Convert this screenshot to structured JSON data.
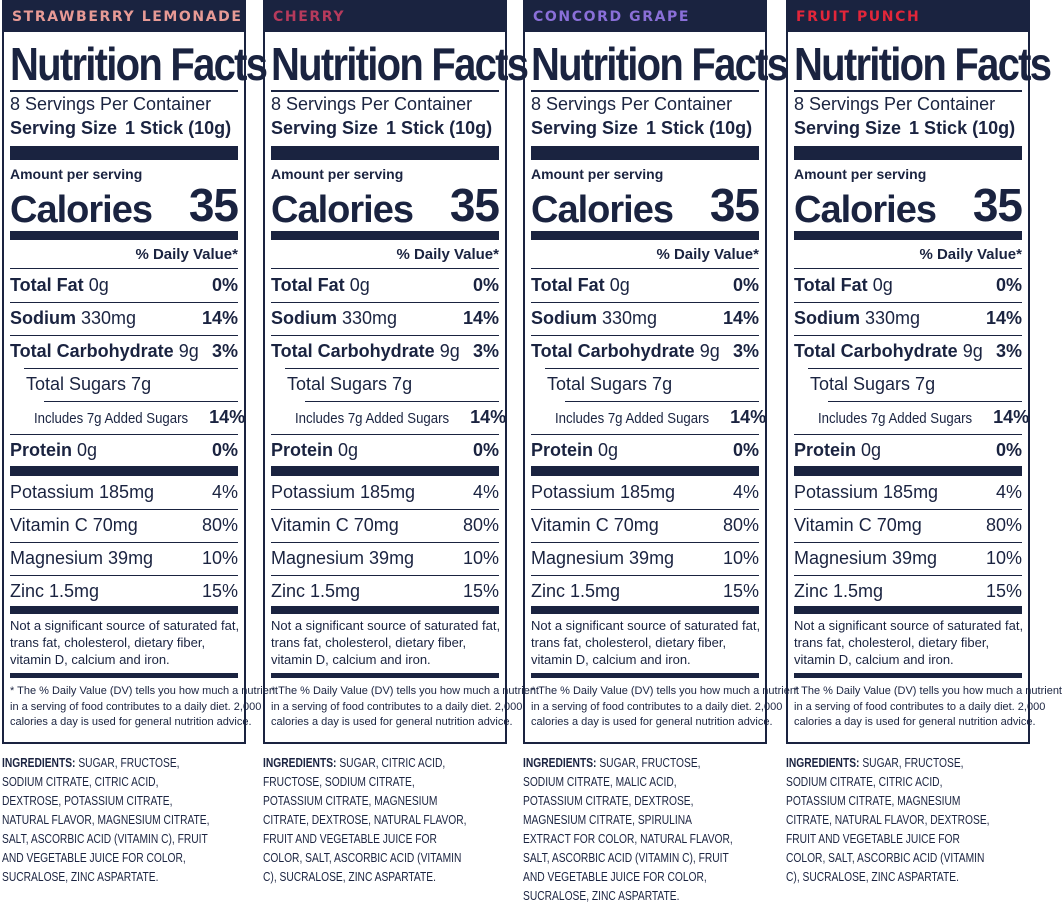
{
  "panels": [
    {
      "flavor": "STRAWBERRY LEMONADE",
      "flavor_color": "#e79a95",
      "ingredients_text": "SUGAR, FRUCTOSE, SODIUM CITRATE, CITRIC ACID, DEXTROSE, POTASSIUM CITRATE, NATURAL FLAVOR, MAGNESIUM CITRATE, SALT, ASCORBIC ACID (VITAMIN C), FRUIT AND VEGETABLE JUICE FOR COLOR, SUCRALOSE, ZINC ASPARTATE."
    },
    {
      "flavor": "CHERRY",
      "flavor_color": "#b63a5c",
      "ingredients_text": "SUGAR, CITRIC ACID, FRUCTOSE, SODIUM CITRATE, POTASSIUM CITRATE, MAGNESIUM CITRATE, DEXTROSE, NATURAL FLAVOR, FRUIT AND VEGETABLE JUICE FOR COLOR, SALT, ASCORBIC ACID (VITAMIN C), SUCRALOSE, ZINC ASPARTATE."
    },
    {
      "flavor": "CONCORD GRAPE",
      "flavor_color": "#8a6fd8",
      "ingredients_text": "SUGAR, FRUCTOSE, SODIUM CITRATE, MALIC ACID, POTASSIUM CITRATE, DEXTROSE, MAGNESIUM CITRATE, SPIRULINA EXTRACT FOR COLOR, NATURAL FLAVOR, SALT, ASCORBIC ACID (VITAMIN C), FRUIT AND VEGETABLE JUICE FOR COLOR, SUCRALOSE, ZINC ASPARTATE."
    },
    {
      "flavor": "FRUIT PUNCH",
      "flavor_color": "#e2263a",
      "ingredients_text": "SUGAR, FRUCTOSE, SODIUM CITRATE, CITRIC ACID, POTASSIUM CITRATE, MAGNESIUM CITRATE, NATURAL FLAVOR, DEXTROSE, FRUIT AND VEGETABLE JUICE FOR COLOR, SALT, ASCORBIC ACID (VITAMIN C), SUCRALOSE, ZINC ASPARTATE."
    }
  ],
  "facts": {
    "title": "Nutrition Facts",
    "servings": "8 Servings Per Container",
    "serving_size_label": "Serving Size",
    "serving_size_value": "1 Stick (10g)",
    "amount_per_serving": "Amount per serving",
    "calories_label": "Calories",
    "calories_value": "35",
    "daily_value_header": "% Daily Value*",
    "total_fat_label": "Total Fat",
    "total_fat_amount": "0g",
    "total_fat_dv": "0%",
    "sodium_label": "Sodium",
    "sodium_amount": "330mg",
    "sodium_dv": "14%",
    "carb_label": "Total Carbohydrate",
    "carb_amount": "9g",
    "carb_dv": "3%",
    "sugars": "Total Sugars 7g",
    "added_sugars": "Includes 7g Added Sugars",
    "added_sugars_dv": "14%",
    "protein_label": "Protein",
    "protein_amount": "0g",
    "protein_dv": "0%",
    "potassium": "Potassium 185mg",
    "potassium_dv": "4%",
    "vitamin_c": "Vitamin C 70mg",
    "vitamin_c_dv": "80%",
    "magnesium": "Magnesium 39mg",
    "magnesium_dv": "10%",
    "zinc": "Zinc 1.5mg",
    "zinc_dv": "15%",
    "not_significant": "Not a significant source of saturated fat, trans fat, cholesterol, dietary fiber, vitamin D, calcium and iron.",
    "footnote_1": "* The % Daily Value (DV) tells you how much a nutrient",
    "footnote_2": "in a serving of food contributes to a daily diet. 2,000",
    "footnote_3": "calories a day is used for general nutrition advice."
  },
  "ingredients_label": "INGREDIENTS:"
}
